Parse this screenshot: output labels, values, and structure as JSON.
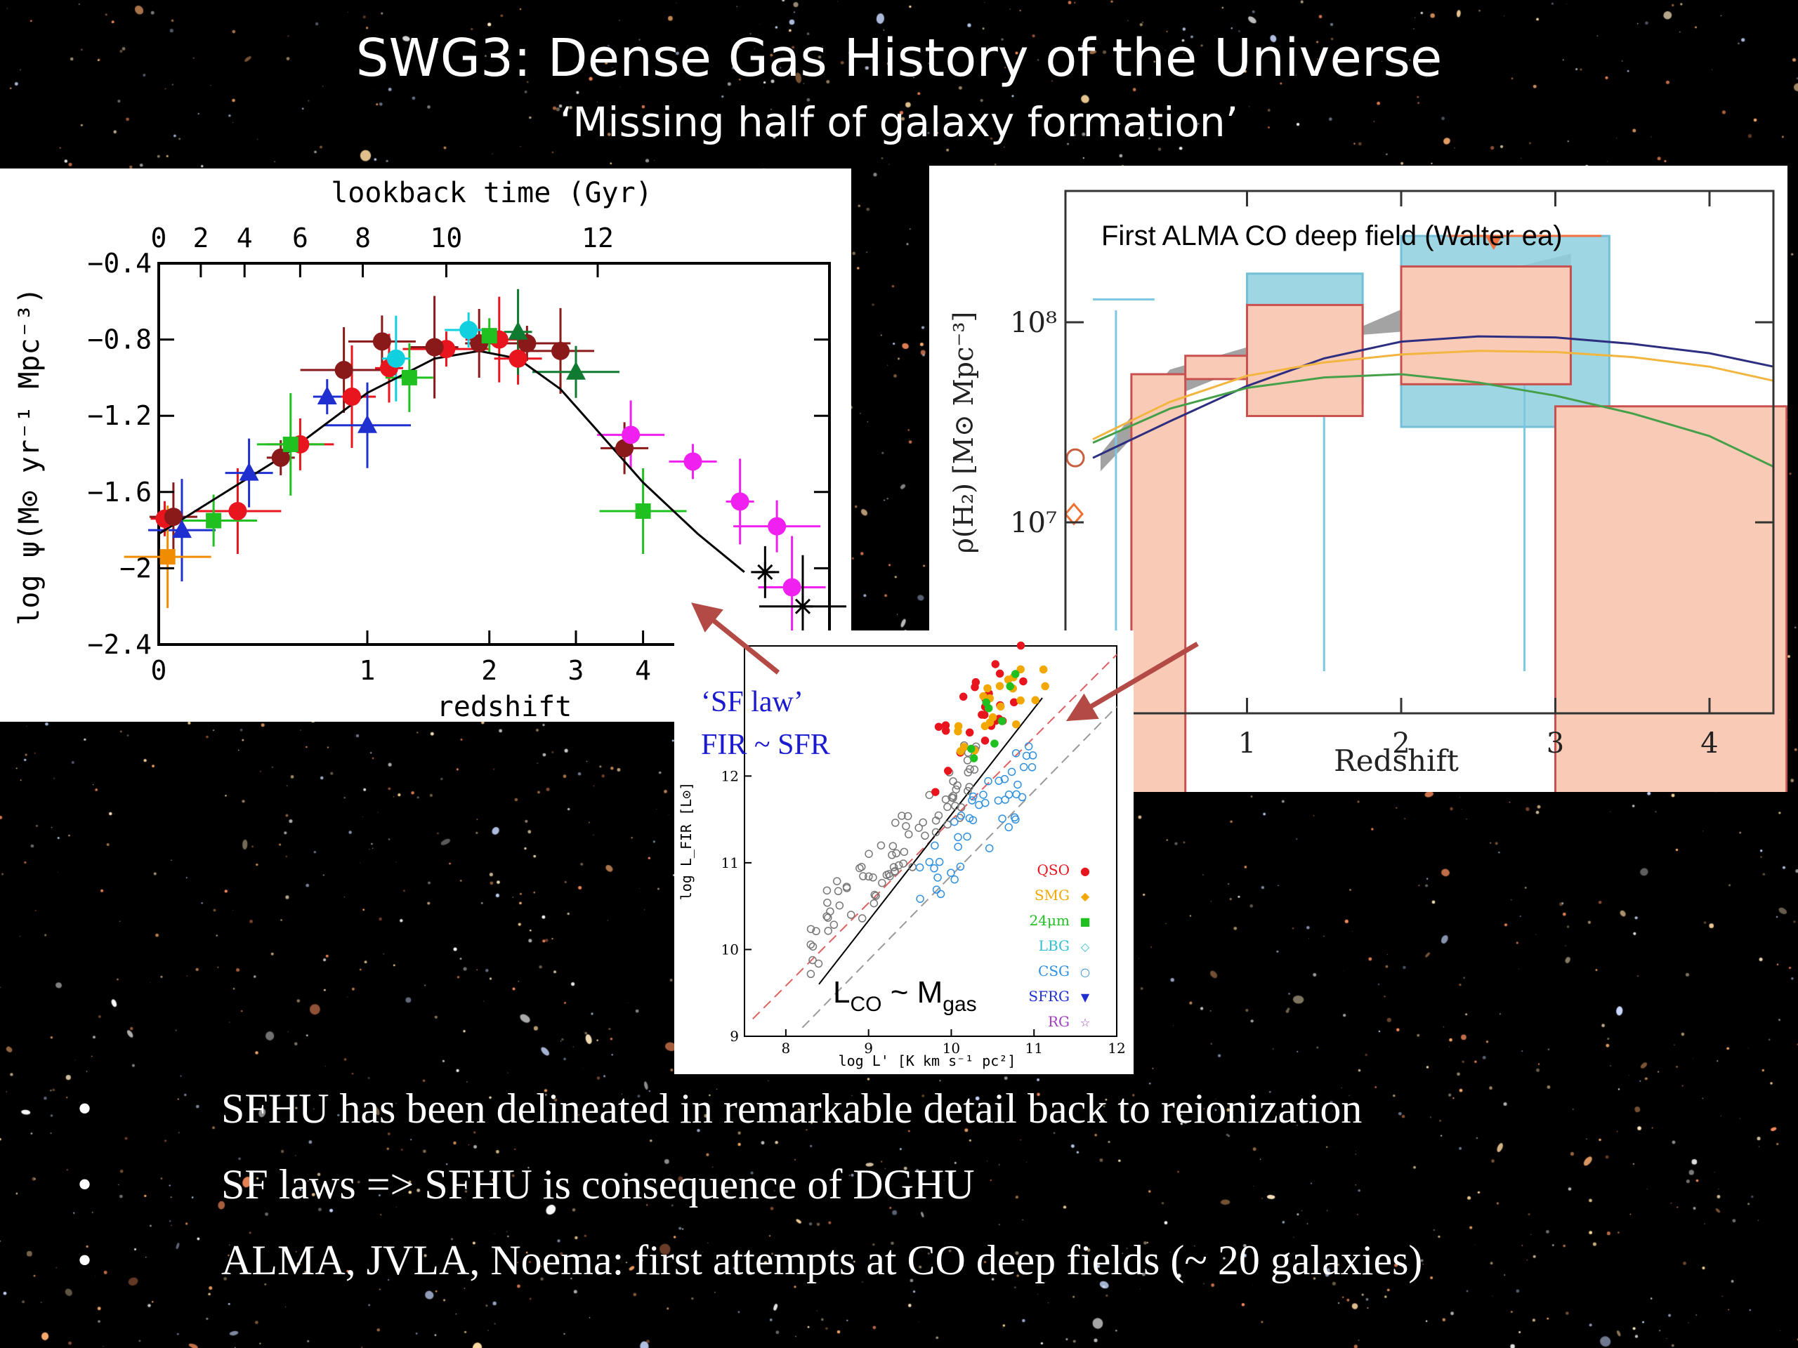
{
  "slide": {
    "title": "SWG3: Dense Gas History of the Universe",
    "subtitle": "‘Missing half of galaxy formation’"
  },
  "bullets": [
    "SFHU has been delineated in remarkable detail back to reionization",
    "SF laws => SFHU is consequence of DGHU",
    "ALMA, JVLA, Noema: first attempts at CO deep fields (~ 20 galaxies)"
  ],
  "bullet_marker": "•",
  "arrow_color": "#b44a45",
  "chart_data": [
    {
      "type": "scatter",
      "xlabel": "redshift",
      "ylabel": "log ψ(M⊙ yr⁻¹ Mpc⁻³)",
      "top_axis_label": "lookback time (Gyr)",
      "top_ticks": [
        "0",
        "2",
        "4",
        "6",
        "8",
        "10",
        "12"
      ],
      "x_ticks": [
        "0",
        "1",
        "2",
        "3",
        "4"
      ],
      "y_ticks": [
        "−0.4",
        "−0.8",
        "−1.2",
        "−1.6",
        "−2",
        "−2.4"
      ],
      "ylim": [
        -2.4,
        -0.4
      ],
      "fit_curve": {
        "x": [
          0,
          0.5,
          1,
          1.5,
          1.9,
          2.3,
          2.8,
          3.3,
          4,
          5,
          6
        ],
        "y": [
          -1.82,
          -1.42,
          -1.08,
          -0.9,
          -0.86,
          -0.9,
          -1.06,
          -1.28,
          -1.55,
          -1.82,
          -2.02
        ]
      },
      "series": [
        {
          "color": "#e8141e",
          "marker": "circle",
          "points": [
            [
              0.02,
              -1.74
            ],
            [
              0.3,
              -1.7
            ],
            [
              0.6,
              -1.35
            ],
            [
              0.9,
              -1.1
            ],
            [
              1.15,
              -0.95
            ],
            [
              1.6,
              -0.85
            ],
            [
              2.1,
              -0.8
            ],
            [
              2.3,
              -0.9
            ]
          ]
        },
        {
          "color": "#8a1a1a",
          "marker": "circle",
          "points": [
            [
              0.05,
              -1.73
            ],
            [
              0.5,
              -1.42
            ],
            [
              0.85,
              -0.96
            ],
            [
              1.1,
              -0.81
            ],
            [
              1.5,
              -0.84
            ],
            [
              1.9,
              -0.82
            ],
            [
              2.4,
              -0.82
            ],
            [
              2.8,
              -0.86
            ],
            [
              3.7,
              -1.37
            ]
          ]
        },
        {
          "color": "#2030d0",
          "marker": "triangle",
          "points": [
            [
              0.08,
              -1.8
            ],
            [
              0.35,
              -1.5
            ],
            [
              0.75,
              -1.1
            ],
            [
              1.0,
              -1.25
            ]
          ]
        },
        {
          "color": "#20c020",
          "marker": "square",
          "points": [
            [
              0.2,
              -1.75
            ],
            [
              0.55,
              -1.35
            ],
            [
              1.3,
              -1.0
            ],
            [
              2.0,
              -0.78
            ],
            [
              4.0,
              -1.7
            ]
          ]
        },
        {
          "color": "#107a30",
          "marker": "triangle",
          "points": [
            [
              2.3,
              -0.76
            ],
            [
              3.0,
              -0.97
            ]
          ]
        },
        {
          "color": "#10d0e0",
          "marker": "hexagon",
          "points": [
            [
              1.8,
              -0.75
            ],
            [
              1.2,
              -0.9
            ]
          ]
        },
        {
          "color": "#f020f0",
          "marker": "pentagon",
          "points": [
            [
              3.8,
              -1.3
            ],
            [
              4.9,
              -1.44
            ],
            [
              5.9,
              -1.65
            ],
            [
              6.8,
              -1.78
            ],
            [
              7.2,
              -2.1
            ]
          ]
        },
        {
          "color": "#f08c00",
          "marker": "square",
          "points": [
            [
              0.03,
              -1.94
            ]
          ]
        },
        {
          "color": "#000000",
          "marker": "star",
          "points": [
            [
              6.5,
              -2.02
            ],
            [
              7.5,
              -2.2
            ]
          ]
        }
      ]
    },
    {
      "type": "bar",
      "annotation": "First ALMA CO deep field (Walter ea)",
      "xlabel": "Redshift",
      "ylabel": "ρ(H₂) [M⊙ Mpc⁻³]",
      "x_ticks": [
        "1",
        "2",
        "3",
        "4"
      ],
      "y_ticks": [
        "10⁸",
        "10⁷"
      ],
      "xlim": [
        0,
        4.5
      ],
      "boxes_red": [
        [
          0.25,
          0.6,
          5.5,
          0
        ],
        [
          0.6,
          1.0,
          5.2,
          6.8
        ],
        [
          1.0,
          1.75,
          3.4,
          12.2
        ],
        [
          2.0,
          3.1,
          4.9,
          19.0
        ],
        [
          3.0,
          4.5,
          3.8,
          0
        ]
      ],
      "boxes_blue": [
        [
          1.0,
          1.75,
          4.0,
          17.5
        ],
        [
          2.0,
          3.35,
          3.0,
          27.0
        ]
      ],
      "curves": [
        {
          "color": "#2e2e80",
          "x": [
            0,
            0.5,
            1,
            1.5,
            2,
            2.5,
            3,
            3.5,
            4,
            4.5
          ],
          "y": [
            2.1,
            3.2,
            4.8,
            6.6,
            8.0,
            8.5,
            8.4,
            7.8,
            7.0,
            6.0
          ]
        },
        {
          "color": "#f2b540",
          "x": [
            0,
            0.5,
            1,
            1.5,
            2,
            2.5,
            3,
            3.5,
            4,
            4.5
          ],
          "y": [
            2.6,
            4.0,
            5.4,
            6.3,
            6.9,
            7.2,
            7.1,
            6.7,
            6.0,
            5.1
          ]
        },
        {
          "color": "#46a04a",
          "x": [
            0,
            0.5,
            1,
            1.5,
            2,
            2.5,
            3,
            3.5,
            4,
            4.5
          ],
          "y": [
            2.5,
            3.7,
            4.7,
            5.3,
            5.5,
            5.0,
            4.3,
            3.5,
            2.7,
            1.9
          ]
        }
      ]
    },
    {
      "type": "scatter",
      "xlabel": "log L' [K km s⁻¹ pc²]",
      "ylabel": "log L_FIR [L⊙]",
      "x_ticks": [
        "8",
        "9",
        "10",
        "11",
        "12"
      ],
      "y_ticks": [
        "9",
        "10",
        "11",
        "12"
      ],
      "legend": [
        {
          "label": "QSO",
          "color": "#e8141e",
          "marker": "●"
        },
        {
          "label": "SMG",
          "color": "#f2a800",
          "marker": "◆"
        },
        {
          "label": "24μm",
          "color": "#20c020",
          "marker": "■"
        },
        {
          "label": "LBG",
          "color": "#30c0d0",
          "marker": "◇"
        },
        {
          "label": "CSG",
          "color": "#3090e0",
          "marker": "○"
        },
        {
          "label": "SFRG",
          "color": "#2030d0",
          "marker": "▼"
        },
        {
          "label": "RG",
          "color": "#a040c0",
          "marker": "☆"
        }
      ],
      "annotation_sf_law": "‘SF law’",
      "annotation_fir": "FIR ~ SFR",
      "annotation_lco": "L",
      "annotation_lco_sub": "CO",
      "annotation_tilde": " ~ M",
      "annotation_mgas_sub": "gas"
    }
  ]
}
